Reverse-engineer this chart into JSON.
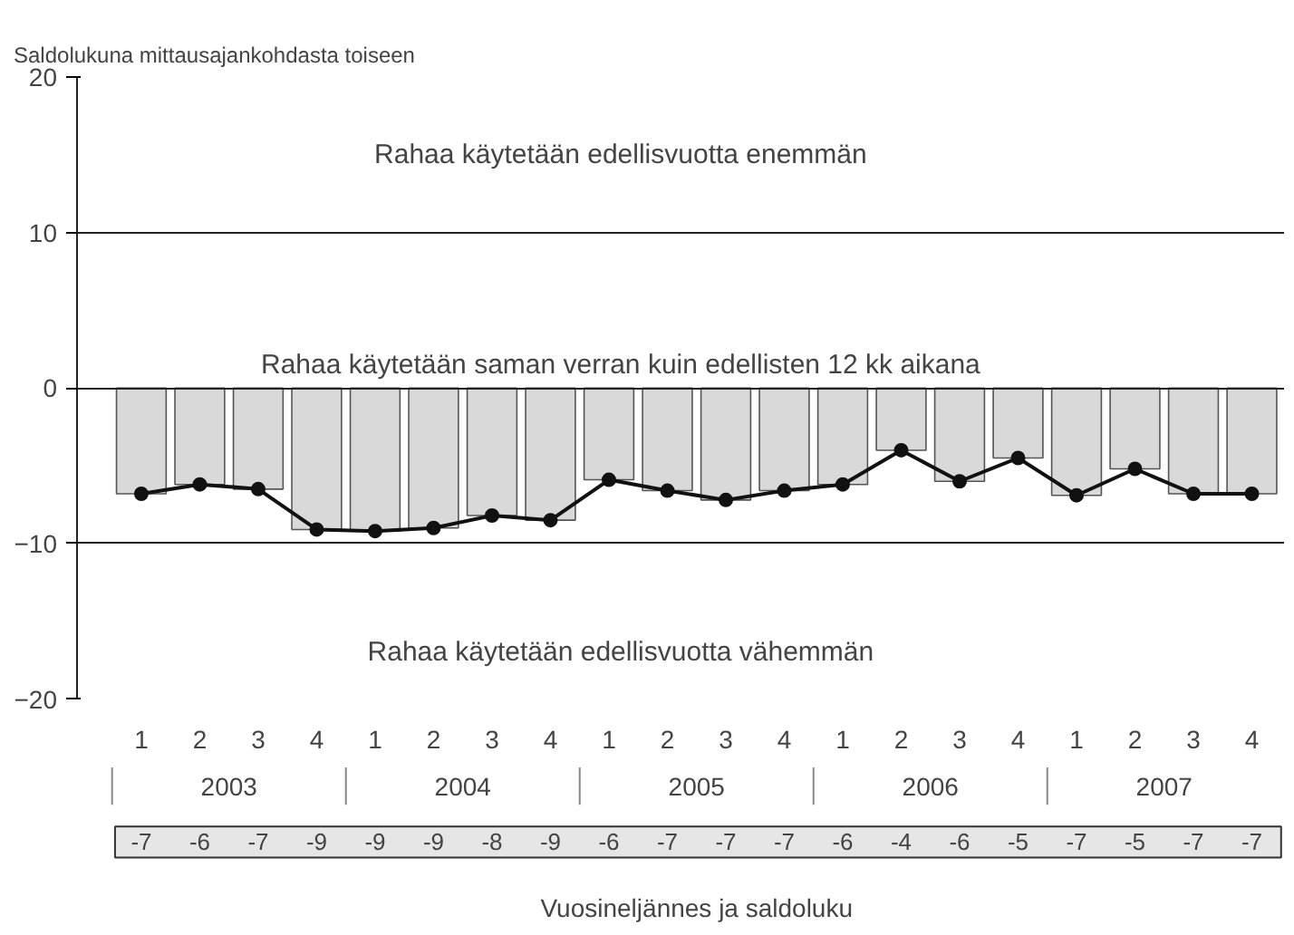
{
  "chart_data": {
    "type": "bar",
    "ylabel": "Saldolukuna mittausajankohdasta toiseen",
    "categories": [
      "1",
      "2",
      "3",
      "4",
      "1",
      "2",
      "3",
      "4",
      "1",
      "2",
      "3",
      "4",
      "1",
      "2",
      "3",
      "4",
      "1",
      "2",
      "3",
      "4"
    ],
    "series": [
      {
        "color": "#d9d9d9",
        "values": [
          -6.8,
          -6.2,
          -6.5,
          -9.1,
          -9.2,
          -9.0,
          -8.2,
          -8.5,
          -5.9,
          -6.6,
          -7.2,
          -6.6,
          -6.2,
          -4.0,
          -6.0,
          -4.5,
          -6.9,
          -5.2,
          -6.8,
          -6.8
        ]
      },
      {
        "type": "line",
        "color": "#111111",
        "marker": "circle",
        "values": [
          -6.8,
          -6.2,
          -6.5,
          -9.1,
          -9.2,
          -9.0,
          -8.2,
          -8.5,
          -5.9,
          -6.6,
          -7.2,
          -6.6,
          -6.2,
          -4.0,
          -6.0,
          -4.5,
          -6.9,
          -5.2,
          -6.8,
          -6.8
        ],
        "value_labels": [
          "-7",
          "-6",
          "-7",
          "-9",
          "-9",
          "-9",
          "-8",
          "-9",
          "-6",
          "-7",
          "-7",
          "-7",
          "-6",
          "-4",
          "-6",
          "-5",
          "-7",
          "-5",
          "-7",
          "-7"
        ]
      }
    ],
    "ylim": [
      -20,
      20
    ],
    "yticks": [
      -20,
      -10,
      0,
      10,
      20
    ],
    "grid": "y",
    "annotations": [
      "Rahaa käytetään edellisvuotta enemmän",
      "Rahaa käytetään saman verran kuin edellisten 12 kk aikana",
      "Rahaa käytetään edellisvuotta vähemmän",
      "2003",
      "2004",
      "2005",
      "2006",
      "2007",
      "Vuosineljännes ja saldoluku"
    ]
  }
}
